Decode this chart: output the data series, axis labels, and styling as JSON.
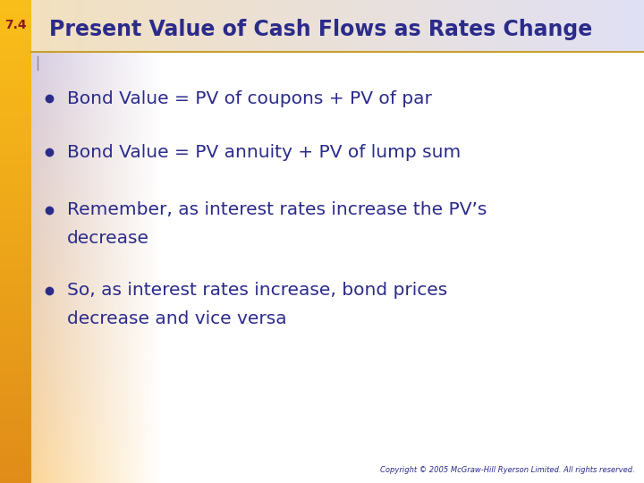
{
  "title": "Present Value of Cash Flows as Rates Change",
  "slide_number": "7.4",
  "bullet_lines": [
    [
      "Bond Value = PV of coupons + PV of par"
    ],
    [
      "Bond Value = PV annuity + PV of lump sum"
    ],
    [
      "Remember, as interest rates increase the PV’s",
      "  decrease"
    ],
    [
      "So, as interest rates increase, bond prices",
      "  decrease and vice versa"
    ]
  ],
  "copyright": "Copyright © 2005 McGraw-Hill Ryerson Limited. All rights reserved.",
  "title_color": "#2b2b8a",
  "bullet_color": "#2b2b8a",
  "slide_num_color": "#8b1a1a",
  "copyright_color": "#2b2b8a",
  "left_bar_color": "#e08000",
  "title_underline_color": "#c8a030",
  "title_bg_left": "#e8d8c0",
  "title_bg_right": "#d8d8ee",
  "content_bg_left": "#f0c880",
  "content_bg_right": "#ffffff",
  "left_accent_color": "#b0a0c0",
  "figwidth": 7.2,
  "figheight": 5.4,
  "dpi": 100
}
